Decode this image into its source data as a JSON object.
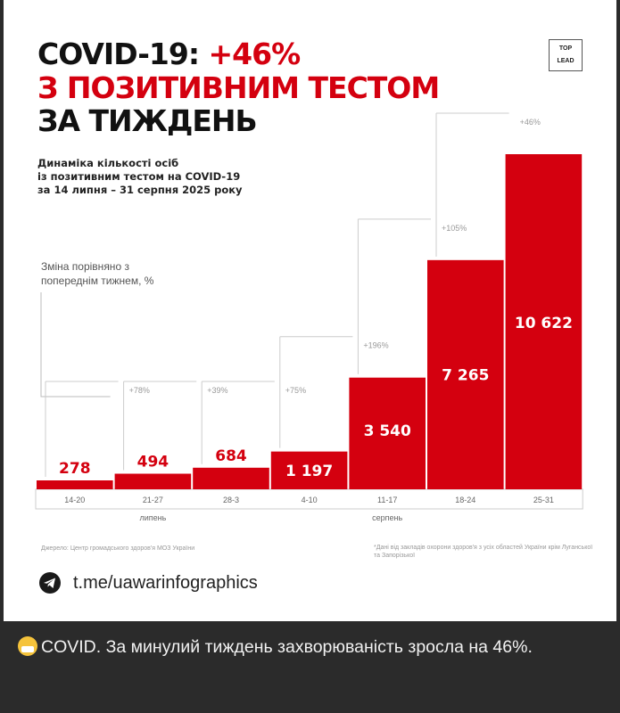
{
  "headline": {
    "line1_prefix": "COVID-19: ",
    "line1_accent": "+46%",
    "line2": "З ПОЗИТИВНИМ ТЕСТОМ",
    "line3": "ЗА ТИЖДЕНЬ"
  },
  "logo": {
    "top": "TOP",
    "bottom": "LEAD"
  },
  "subtitle": {
    "line1": "Динаміка кількості осіб",
    "line2": "із позитивним тестом на COVID-19",
    "line3": "за 14 липня – 31 серпня 2025 року"
  },
  "change_note": {
    "line1": "Зміна порівняно з",
    "line2": "попереднім тижнем, %"
  },
  "chart_data": {
    "type": "bar",
    "categories": [
      "14-20",
      "21-27",
      "28-3",
      "4-10",
      "11-17",
      "18-24",
      "25-31"
    ],
    "values": [
      278,
      494,
      684,
      1197,
      3540,
      7265,
      10622
    ],
    "value_labels": [
      "278",
      "494",
      "684",
      "1 197",
      "3 540",
      "7 265",
      "10 622"
    ],
    "changes": [
      "",
      "+78%",
      "+39%",
      "+75%",
      "+196%",
      "+105%",
      "+46%"
    ],
    "month_labels": [
      {
        "label": "липень",
        "category_index": 1
      },
      {
        "label": "серпень",
        "category_index": 4
      }
    ],
    "bar_color": "#d4000f",
    "ylim": [
      0,
      10622
    ]
  },
  "footer": {
    "source": "Джерело: Центр громадського здоров'я МОЗ України",
    "note": "*Дані від закладів охорони здоров'я з усіх областей України крім Луганської та Запорізької"
  },
  "telegram": {
    "icon": "telegram-icon",
    "link": "t.me/uawarinfographics"
  },
  "message": {
    "emoji": "mask-face-icon",
    "text": "COVID. За минулий тиждень захворюваність зросла на 46%."
  }
}
